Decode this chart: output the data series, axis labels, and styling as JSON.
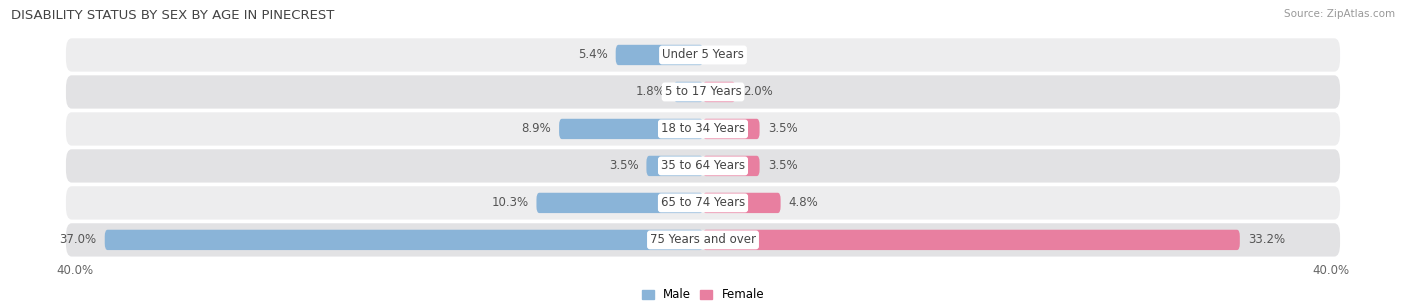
{
  "title": "DISABILITY STATUS BY SEX BY AGE IN PINECREST",
  "source": "Source: ZipAtlas.com",
  "categories": [
    "Under 5 Years",
    "5 to 17 Years",
    "18 to 34 Years",
    "35 to 64 Years",
    "65 to 74 Years",
    "75 Years and over"
  ],
  "male_values": [
    5.4,
    1.8,
    8.9,
    3.5,
    10.3,
    37.0
  ],
  "female_values": [
    0.0,
    2.0,
    3.5,
    3.5,
    4.8,
    33.2
  ],
  "male_color": "#8ab4d8",
  "female_color": "#e87fa0",
  "row_bg_light": "#ededee",
  "row_bg_dark": "#e2e2e4",
  "max_val": 40.0,
  "bar_height": 0.55,
  "title_fontsize": 9.5,
  "label_fontsize": 8.5,
  "tick_fontsize": 8.5,
  "axis_label": "40.0%",
  "legend_male": "Male",
  "legend_female": "Female"
}
